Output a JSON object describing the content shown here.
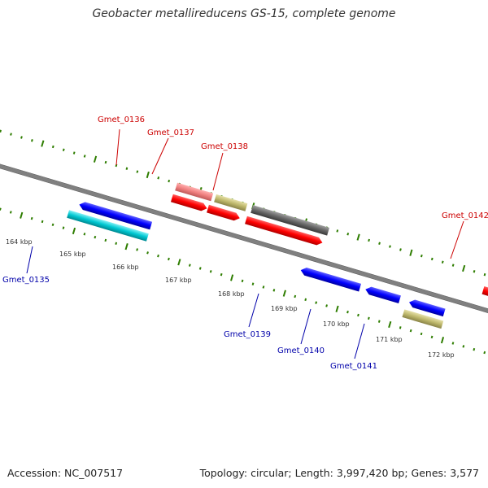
{
  "title": "Geobacter metallireducens GS-15, complete genome",
  "footer": {
    "accession": "Accession: NC_007517",
    "stats": "Topology: circular; Length: 3,997,420 bp; Genes: 3,577"
  },
  "colors": {
    "forward_cds": "#ff0000",
    "forward_cds_light": "#f08080",
    "reverse_cds": "#0000ff",
    "reverse_cds_alt": "#00c8d2",
    "other_feature": "#bdb76b",
    "other_feature_dark": "#666666",
    "backbone": "#7f7f7f",
    "ticks": "#2e7d00",
    "forward_label": "#cc0000",
    "reverse_label": "#0000aa"
  },
  "scale_labels": [
    "164 kbp",
    "165 kbp",
    "166 kbp",
    "167 kbp",
    "168 kbp",
    "169 kbp",
    "170 kbp",
    "171 kbp",
    "172 kbp"
  ],
  "gene_labels": [
    {
      "text": "Gmet_0135",
      "strand": "reverse"
    },
    {
      "text": "Gmet_0136",
      "strand": "forward"
    },
    {
      "text": "Gmet_0137",
      "strand": "forward"
    },
    {
      "text": "Gmet_0138",
      "strand": "forward"
    },
    {
      "text": "Gmet_0139",
      "strand": "reverse"
    },
    {
      "text": "Gmet_0140",
      "strand": "reverse"
    },
    {
      "text": "Gmet_0141",
      "strand": "reverse"
    },
    {
      "text": "Gmet_0142",
      "strand": "forward"
    }
  ]
}
